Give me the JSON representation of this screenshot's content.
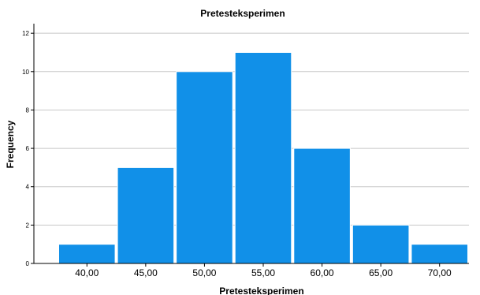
{
  "chart_data": {
    "type": "bar",
    "title": "Pretesteksperimen",
    "xlabel": "Pretesteksperimen",
    "ylabel": "Frequency",
    "categories": [
      "40,00",
      "45,00",
      "50,00",
      "55,00",
      "60,00",
      "65,00",
      "70,00"
    ],
    "values": [
      1,
      5,
      10,
      11,
      6,
      2,
      1
    ],
    "ylim": [
      0,
      12.5
    ],
    "yticks": [
      "0",
      "2",
      "4",
      "6",
      "8",
      "10",
      "12"
    ],
    "grid": "horizontal",
    "bar_color": "#1190e8",
    "bar_edge_color": "#ffffff"
  }
}
